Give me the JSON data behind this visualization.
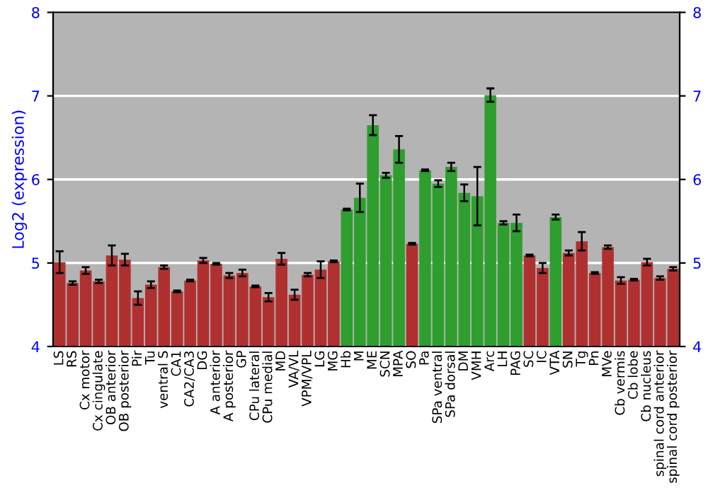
{
  "chart_data": {
    "type": "bar",
    "ylabel": "Log2 (expression)",
    "categories": [
      "LS",
      "RS",
      "Cx motor",
      "Cx cingulate",
      "OB anterior",
      "OB posterior",
      "Pir",
      "Tu",
      "ventral S",
      "CA1",
      "CA2/CA3",
      "DG",
      "A anterior",
      "A posterior",
      "GP",
      "CPu lateral",
      "CPu medial",
      "MD",
      "VA/VL",
      "VPM/VPL",
      "LG",
      "MG",
      "Hb",
      "M",
      "ME",
      "SCN",
      "MPA",
      "SO",
      "Pa",
      "SPa ventral",
      "SPa dorsal",
      "DM",
      "VMH",
      "Arc",
      "LH",
      "PAG",
      "SC",
      "IC",
      "VTA",
      "SN",
      "Tg",
      "Pn",
      "MVe",
      "Cb vermis",
      "Cb lobe",
      "Cb nucleus",
      "spinal cord anterior",
      "spinal cord posterior"
    ],
    "values": [
      5.01,
      4.76,
      4.91,
      4.78,
      5.09,
      5.04,
      4.58,
      4.74,
      4.95,
      4.66,
      4.79,
      5.03,
      4.99,
      4.85,
      4.88,
      4.72,
      4.59,
      5.05,
      4.62,
      4.86,
      4.92,
      5.02,
      5.64,
      5.78,
      6.65,
      6.05,
      6.36,
      5.23,
      6.11,
      5.95,
      6.15,
      5.84,
      5.8,
      7.01,
      5.48,
      5.48,
      5.09,
      4.94,
      5.55,
      5.12,
      5.26,
      4.88,
      5.19,
      4.79,
      4.8,
      5.01,
      4.82,
      4.93
    ],
    "errors": [
      0.13,
      0.02,
      0.04,
      0.02,
      0.12,
      0.07,
      0.08,
      0.04,
      0.02,
      0.01,
      0.01,
      0.03,
      0.01,
      0.03,
      0.04,
      0.01,
      0.05,
      0.07,
      0.06,
      0.02,
      0.1,
      0.01,
      0.01,
      0.17,
      0.12,
      0.03,
      0.16,
      0.01,
      0.01,
      0.04,
      0.05,
      0.1,
      0.35,
      0.08,
      0.02,
      0.1,
      0.01,
      0.06,
      0.03,
      0.03,
      0.11,
      0.01,
      0.02,
      0.04,
      0.01,
      0.04,
      0.02,
      0.02
    ],
    "colors": [
      "#b03030",
      "#b03030",
      "#b03030",
      "#b03030",
      "#b03030",
      "#b03030",
      "#b03030",
      "#b03030",
      "#b03030",
      "#b03030",
      "#b03030",
      "#b03030",
      "#b03030",
      "#b03030",
      "#b03030",
      "#b03030",
      "#b03030",
      "#b03030",
      "#b03030",
      "#b03030",
      "#b03030",
      "#b03030",
      "#2e9e2e",
      "#2e9e2e",
      "#2e9e2e",
      "#2e9e2e",
      "#2e9e2e",
      "#b03030",
      "#2e9e2e",
      "#2e9e2e",
      "#2e9e2e",
      "#2e9e2e",
      "#2e9e2e",
      "#2e9e2e",
      "#2e9e2e",
      "#2e9e2e",
      "#b03030",
      "#b03030",
      "#2e9e2e",
      "#b03030",
      "#b03030",
      "#b03030",
      "#b03030",
      "#b03030",
      "#b03030",
      "#b03030",
      "#b03030",
      "#b03030"
    ],
    "ylim": [
      4,
      8
    ],
    "yticks": [
      4,
      5,
      6,
      7,
      8
    ],
    "y2lim": [
      4,
      8
    ],
    "y2ticks": [
      4,
      5,
      6,
      7,
      8
    ],
    "grid": "y"
  }
}
